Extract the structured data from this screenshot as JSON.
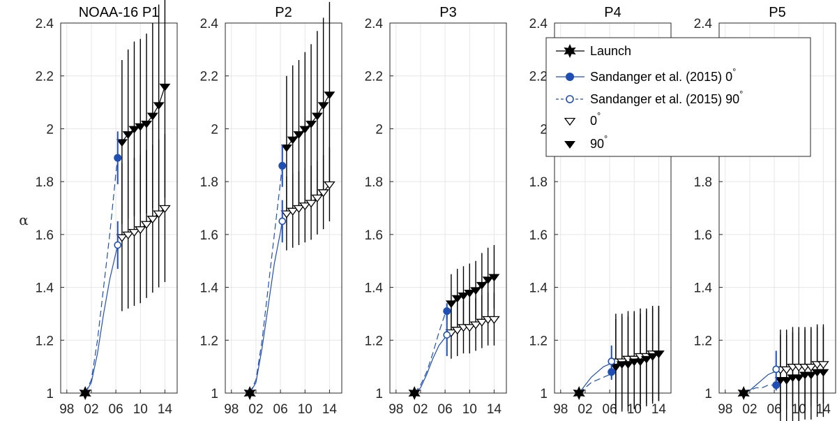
{
  "chart_data": {
    "type": "line",
    "ylabel": "α",
    "ylim": [
      1,
      2.4
    ],
    "yticks": [
      "1",
      "1.2",
      "1.4",
      "1.6",
      "1.8",
      "2",
      "2.2",
      "2.4"
    ],
    "xlim": [
      1997,
      2016
    ],
    "xticks": [
      {
        "value": 1998,
        "label": "98"
      },
      {
        "value": 2002,
        "label": "02"
      },
      {
        "value": 2006,
        "label": "06"
      },
      {
        "value": 2010,
        "label": "10"
      },
      {
        "value": 2014,
        "label": "14"
      }
    ],
    "grid": true,
    "legend": {
      "position": "top-right",
      "entries": [
        {
          "key": "launch",
          "label": "Launch",
          "sup": ""
        },
        {
          "key": "s0",
          "label": "Sandanger et al. (2015) 0",
          "sup": "°"
        },
        {
          "key": "s90",
          "label": "Sandanger et al. (2015) 90",
          "sup": "°"
        },
        {
          "key": "d0",
          "label": "0",
          "sup": "°"
        },
        {
          "key": "d90",
          "label": "90",
          "sup": "°"
        }
      ]
    },
    "colors": {
      "sandanger": "#1f4fb5",
      "measured": "#000000"
    },
    "panels": [
      {
        "title": "NOAA-16 P1",
        "launch": {
          "x": 2001,
          "y": 1.0
        },
        "s0_curve": [
          [
            2001,
            1.0
          ],
          [
            2002,
            1.05
          ],
          [
            2003,
            1.2
          ],
          [
            2004,
            1.4
          ],
          [
            2005,
            1.6
          ],
          [
            2006,
            1.83
          ],
          [
            2006.3,
            1.89
          ]
        ],
        "s0_point": {
          "x": 2006.3,
          "y": 1.89,
          "err": 0.1
        },
        "s90_curve": [
          [
            2001,
            1.0
          ],
          [
            2002,
            1.04
          ],
          [
            2003,
            1.15
          ],
          [
            2004,
            1.3
          ],
          [
            2005,
            1.43
          ],
          [
            2006,
            1.53
          ],
          [
            2006.3,
            1.56
          ]
        ],
        "s90_point": {
          "x": 2006.3,
          "y": 1.56,
          "err": 0.09
        },
        "x": [
          2007,
          2008,
          2009,
          2010,
          2011,
          2012,
          2013,
          2014
        ],
        "deg90": [
          1.95,
          1.98,
          2.0,
          2.01,
          2.02,
          2.05,
          2.09,
          2.16
        ],
        "deg90_err": [
          0.31,
          0.32,
          0.33,
          0.33,
          0.34,
          0.35,
          0.38,
          0.42
        ],
        "deg0": [
          1.59,
          1.6,
          1.61,
          1.62,
          1.64,
          1.66,
          1.68,
          1.7
        ],
        "deg0_err": [
          0.28,
          0.28,
          0.28,
          0.28,
          0.28,
          0.28,
          0.28,
          0.28
        ]
      },
      {
        "title": "P2",
        "launch": {
          "x": 2001,
          "y": 1.0
        },
        "s0_curve": [
          [
            2001,
            1.0
          ],
          [
            2002,
            1.05
          ],
          [
            2003,
            1.2
          ],
          [
            2004,
            1.4
          ],
          [
            2005,
            1.6
          ],
          [
            2006,
            1.8
          ],
          [
            2006.3,
            1.86
          ]
        ],
        "s0_point": {
          "x": 2006.3,
          "y": 1.86,
          "err": 0.08
        },
        "s90_curve": [
          [
            2001,
            1.0
          ],
          [
            2002,
            1.04
          ],
          [
            2003,
            1.17
          ],
          [
            2004,
            1.33
          ],
          [
            2005,
            1.49
          ],
          [
            2006,
            1.61
          ],
          [
            2006.3,
            1.65
          ]
        ],
        "s90_point": {
          "x": 2006.3,
          "y": 1.65,
          "err": 0.08
        },
        "x": [
          2007,
          2008,
          2009,
          2010,
          2011,
          2012,
          2013,
          2014
        ],
        "deg90": [
          1.93,
          1.96,
          1.98,
          2.0,
          2.02,
          2.05,
          2.09,
          2.13
        ],
        "deg90_err": [
          0.27,
          0.28,
          0.28,
          0.29,
          0.3,
          0.32,
          0.33,
          0.35
        ],
        "deg0": [
          1.68,
          1.69,
          1.7,
          1.71,
          1.72,
          1.74,
          1.76,
          1.79
        ],
        "deg0_err": [
          0.14,
          0.14,
          0.14,
          0.14,
          0.14,
          0.14,
          0.14,
          0.14
        ]
      },
      {
        "title": "P3",
        "launch": {
          "x": 2001,
          "y": 1.0
        },
        "s0_curve": [
          [
            2001,
            1.0
          ],
          [
            2002,
            1.03
          ],
          [
            2003,
            1.08
          ],
          [
            2004,
            1.15
          ],
          [
            2005,
            1.23
          ],
          [
            2006,
            1.3
          ],
          [
            2006.3,
            1.31
          ]
        ],
        "s0_point": {
          "x": 2006.3,
          "y": 1.31,
          "err": 0.03
        },
        "s90_curve": [
          [
            2001,
            1.0
          ],
          [
            2002,
            1.02
          ],
          [
            2003,
            1.07
          ],
          [
            2004,
            1.13
          ],
          [
            2005,
            1.18
          ],
          [
            2006,
            1.21
          ],
          [
            2006.3,
            1.22
          ]
        ],
        "s90_point": {
          "x": 2006.3,
          "y": 1.22,
          "err": 0.08
        },
        "x": [
          2007,
          2008,
          2009,
          2010,
          2011,
          2012,
          2013,
          2014
        ],
        "deg90": [
          1.34,
          1.36,
          1.37,
          1.38,
          1.39,
          1.41,
          1.43,
          1.44
        ],
        "deg90_err": [
          0.11,
          0.11,
          0.11,
          0.11,
          0.11,
          0.12,
          0.12,
          0.12
        ],
        "deg0": [
          1.23,
          1.24,
          1.25,
          1.25,
          1.26,
          1.27,
          1.28,
          1.28
        ],
        "deg0_err": [
          0.1,
          0.1,
          0.1,
          0.1,
          0.1,
          0.1,
          0.1,
          0.1
        ]
      },
      {
        "title": "P4",
        "launch": {
          "x": 2001,
          "y": 1.0
        },
        "s0_curve": [
          [
            2001,
            1.0
          ],
          [
            2002,
            1.02
          ],
          [
            2003,
            1.04
          ],
          [
            2004,
            1.05
          ],
          [
            2005,
            1.06
          ],
          [
            2006,
            1.07
          ],
          [
            2006.3,
            1.08
          ]
        ],
        "s0_point": {
          "x": 2006.3,
          "y": 1.08,
          "err": 0.03
        },
        "s90_curve": [
          [
            2001,
            1.0
          ],
          [
            2002,
            1.03
          ],
          [
            2003,
            1.06
          ],
          [
            2004,
            1.08
          ],
          [
            2005,
            1.1
          ],
          [
            2006,
            1.11
          ],
          [
            2006.3,
            1.12
          ]
        ],
        "s90_point": {
          "x": 2006.3,
          "y": 1.12,
          "err": 0.06
        },
        "x": [
          2007,
          2008,
          2009,
          2010,
          2011,
          2012,
          2013,
          2014
        ],
        "deg90": [
          1.1,
          1.11,
          1.11,
          1.12,
          1.12,
          1.13,
          1.14,
          1.15
        ],
        "deg90_err": [
          0.18,
          0.18,
          0.18,
          0.18,
          0.18,
          0.18,
          0.18,
          0.18
        ],
        "deg0": [
          1.12,
          1.12,
          1.13,
          1.13,
          1.14,
          1.14,
          1.15,
          1.15
        ],
        "deg0_err": [
          0.18,
          0.18,
          0.18,
          0.18,
          0.18,
          0.18,
          0.18,
          0.18
        ]
      },
      {
        "title": "P5",
        "launch": {
          "x": 2001,
          "y": 1.0
        },
        "s0_curve": [
          [
            2001,
            1.0
          ],
          [
            2002,
            1.01
          ],
          [
            2003,
            1.02
          ],
          [
            2004,
            1.02
          ],
          [
            2005,
            1.03
          ],
          [
            2006,
            1.03
          ],
          [
            2006.3,
            1.03
          ]
        ],
        "s0_point": {
          "x": 2006.3,
          "y": 1.03,
          "err": 0.02
        },
        "s90_curve": [
          [
            2001,
            1.0
          ],
          [
            2002,
            1.01
          ],
          [
            2003,
            1.03
          ],
          [
            2004,
            1.05
          ],
          [
            2005,
            1.07
          ],
          [
            2006,
            1.08
          ],
          [
            2006.3,
            1.09
          ]
        ],
        "s90_point": {
          "x": 2006.3,
          "y": 1.09,
          "err": 0.07
        },
        "x": [
          2007,
          2008,
          2009,
          2010,
          2011,
          2012,
          2013,
          2014
        ],
        "deg90": [
          1.05,
          1.05,
          1.06,
          1.06,
          1.07,
          1.07,
          1.08,
          1.08
        ],
        "deg90_err": [
          0.17,
          0.17,
          0.17,
          0.17,
          0.17,
          0.17,
          0.17,
          0.17
        ],
        "deg0": [
          1.09,
          1.09,
          1.1,
          1.1,
          1.1,
          1.1,
          1.11,
          1.11
        ],
        "deg0_err": [
          0.15,
          0.15,
          0.15,
          0.15,
          0.15,
          0.15,
          0.15,
          0.15
        ]
      }
    ]
  }
}
